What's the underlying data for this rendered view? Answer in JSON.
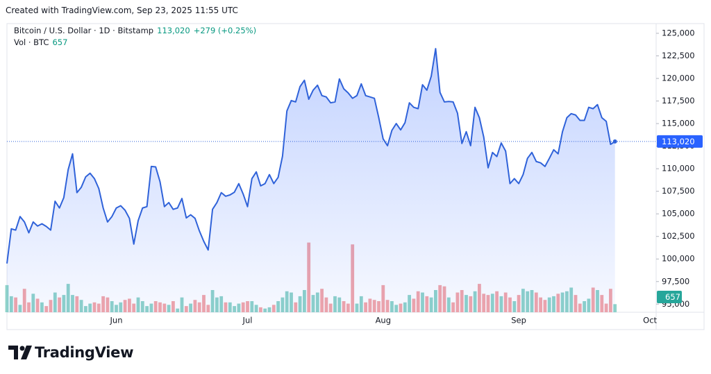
{
  "created": "Created with TradingView.com, Sep 23, 2025 11:55 UTC",
  "brand": "TradingView",
  "chart_data": {
    "type": "area",
    "legend": {
      "symbol": "Bitcoin / U.S. Dollar · 1D · Bitstamp",
      "price": "113,020",
      "change": "+279 (+0.25%)",
      "volume_label": "Vol · BTC",
      "volume": "657"
    },
    "color": "#2f62d9",
    "up_color": "#8fd3c9",
    "down_color": "#f3a6a9",
    "grid": false,
    "categories": [
      null,
      null,
      null,
      null,
      null,
      null,
      null,
      null,
      null,
      null,
      null,
      null,
      null,
      null,
      null,
      null,
      null,
      null,
      null,
      null,
      null,
      null,
      null,
      null,
      null,
      "Jun",
      null,
      null,
      null,
      null,
      null,
      null,
      null,
      null,
      null,
      null,
      null,
      null,
      null,
      null,
      null,
      null,
      null,
      null,
      null,
      null,
      null,
      null,
      null,
      null,
      null,
      null,
      null,
      null,
      null,
      "Jul",
      null,
      null,
      null,
      null,
      null,
      null,
      null,
      null,
      null,
      null,
      null,
      null,
      null,
      null,
      null,
      null,
      null,
      null,
      null,
      null,
      null,
      null,
      null,
      null,
      null,
      null,
      null,
      null,
      null,
      null,
      "Aug",
      null,
      null,
      null,
      null,
      null,
      null,
      null,
      null,
      null,
      null,
      null,
      null,
      null,
      null,
      null,
      null,
      null,
      null,
      null,
      null,
      null,
      null,
      null,
      null,
      null,
      null,
      null,
      null,
      null,
      null,
      "Sep",
      null,
      null,
      null,
      null,
      null,
      null,
      null,
      null,
      null,
      null,
      null,
      null,
      null,
      null,
      null,
      null,
      null,
      null,
      null,
      null,
      null,
      null,
      null,
      null,
      null,
      null,
      null,
      null,
      null,
      "Oct"
    ],
    "values": [
      99500,
      103340,
      103200,
      104700,
      104100,
      102900,
      104100,
      103650,
      103900,
      103600,
      103200,
      106400,
      105650,
      106800,
      109900,
      111650,
      107350,
      107950,
      109100,
      109500,
      108900,
      107800,
      105650,
      104100,
      104700,
      105650,
      105900,
      105400,
      104500,
      101650,
      104250,
      105650,
      105800,
      110250,
      110200,
      108550,
      105800,
      106250,
      105500,
      105650,
      106700,
      104550,
      104900,
      104500,
      103100,
      101950,
      101000,
      105500,
      106250,
      107350,
      106950,
      107100,
      107400,
      108350,
      107200,
      105800,
      108900,
      109650,
      108100,
      108350,
      109350,
      108350,
      109050,
      111400,
      116400,
      117550,
      117400,
      119100,
      119800,
      117700,
      118700,
      119250,
      118100,
      117950,
      117300,
      117400,
      119950,
      118850,
      118400,
      117800,
      118100,
      119400,
      118100,
      117950,
      117800,
      115650,
      113300,
      112550,
      114250,
      115000,
      114300,
      115100,
      117300,
      116800,
      116650,
      119300,
      118700,
      120250,
      123300,
      118450,
      117400,
      117450,
      117400,
      116150,
      112800,
      114100,
      112550,
      116800,
      115650,
      113500,
      110100,
      111800,
      111350,
      112850,
      111950,
      108350,
      108900,
      108350,
      109350,
      111150,
      111800,
      110800,
      110650,
      110250,
      111150,
      112100,
      111650,
      114100,
      115650,
      116100,
      115950,
      115350,
      115350,
      116800,
      116650,
      117100,
      115650,
      115250,
      112700,
      113020,
      null,
      null,
      null,
      null,
      null,
      null,
      null,
      null
    ],
    "volume": [
      2200,
      1300,
      1200,
      600,
      1900,
      800,
      1500,
      1100,
      800,
      500,
      1000,
      1600,
      1200,
      1400,
      2300,
      1400,
      1300,
      1000,
      500,
      700,
      800,
      700,
      1300,
      1200,
      900,
      600,
      800,
      1000,
      1100,
      700,
      1200,
      900,
      500,
      700,
      900,
      800,
      700,
      600,
      900,
      300,
      1200,
      500,
      700,
      1000,
      800,
      1400,
      600,
      1800,
      1200,
      1300,
      800,
      800,
      500,
      700,
      800,
      900,
      900,
      600,
      400,
      300,
      400,
      600,
      900,
      1200,
      1700,
      1600,
      800,
      1300,
      1800,
      5650,
      1400,
      1600,
      1900,
      1200,
      700,
      1300,
      1200,
      900,
      700,
      5500,
      700,
      1300,
      800,
      1100,
      1000,
      900,
      2200,
      1000,
      900,
      600,
      700,
      800,
      1400,
      1100,
      1700,
      1600,
      1300,
      1200,
      1800,
      2200,
      2100,
      1200,
      800,
      1600,
      1800,
      1400,
      1300,
      1700,
      2300,
      1500,
      1400,
      1500,
      1700,
      1300,
      1600,
      1200,
      900,
      1400,
      1900,
      1700,
      1800,
      1600,
      1200,
      1000,
      1200,
      1300,
      1500,
      1600,
      1700,
      2000,
      1400,
      700,
      900,
      1100,
      2000,
      1800,
      1400,
      700,
      1900,
      657,
      null,
      null,
      null,
      null,
      null,
      null,
      null,
      null
    ],
    "volume_lim": [
      0,
      9000
    ],
    "ylim": [
      94100,
      126000
    ],
    "yticks": [
      {
        "value": 95000,
        "label": "95,000"
      },
      {
        "value": 97500,
        "label": "97,500"
      },
      {
        "value": 100000,
        "label": "100,000"
      },
      {
        "value": 102500,
        "label": "102,500"
      },
      {
        "value": 105000,
        "label": "105,000"
      },
      {
        "value": 107500,
        "label": "107,500"
      },
      {
        "value": 110000,
        "label": "110,000"
      },
      {
        "value": 112500,
        "label": "112,500"
      },
      {
        "value": 115000,
        "label": "115,000"
      },
      {
        "value": 117500,
        "label": "117,500"
      },
      {
        "value": 120000,
        "label": "120,000"
      },
      {
        "value": 122500,
        "label": "122,500"
      },
      {
        "value": 125000,
        "label": "125,000"
      }
    ]
  }
}
